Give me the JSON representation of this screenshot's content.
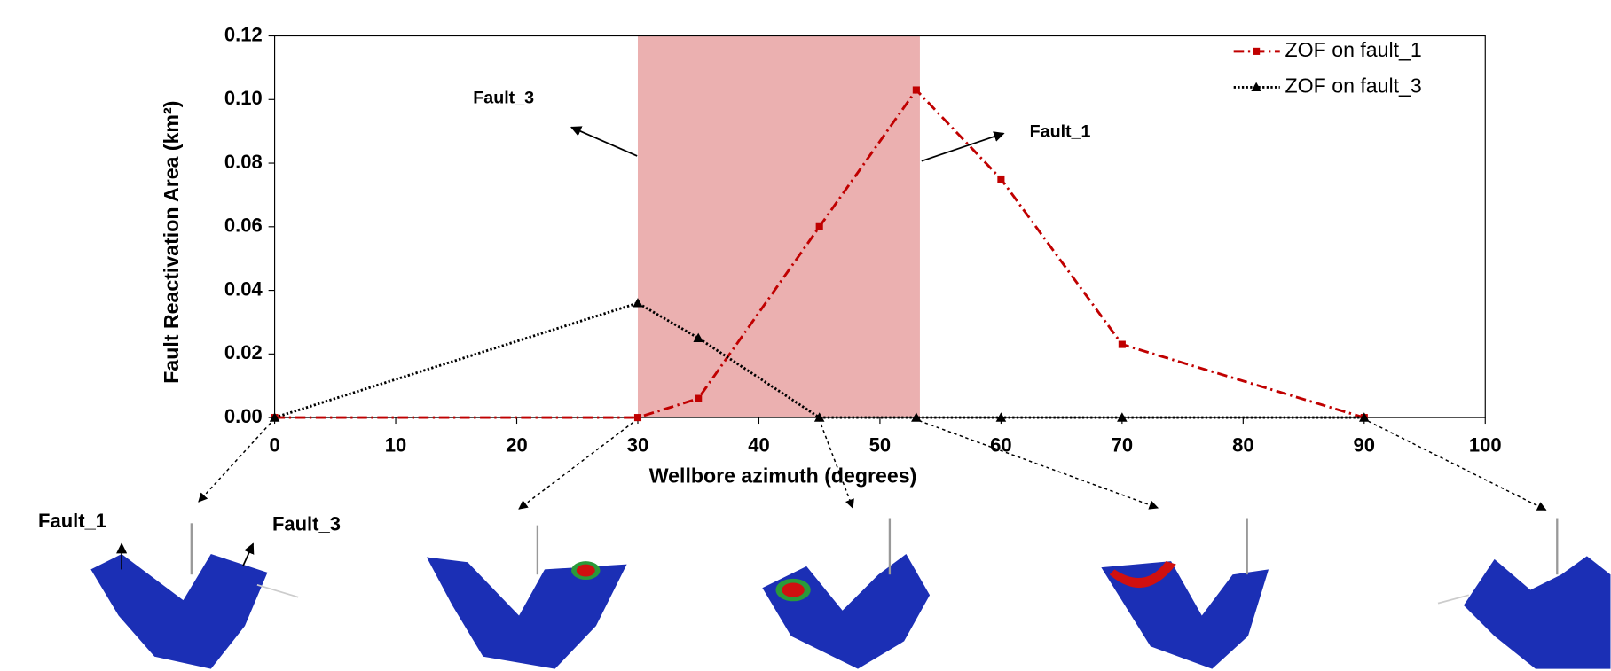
{
  "chart_data": {
    "type": "line",
    "x_label": "Wellbore azimuth (degrees)",
    "y_label": "Fault Reactivation Area (km²)",
    "x": [
      0,
      30,
      35,
      45,
      53,
      60,
      70,
      90
    ],
    "series": [
      {
        "name": "ZOF on fault_1",
        "color": "#c00000",
        "marker": "square",
        "line_style": "dashdot",
        "values": [
          0,
          0,
          0.006,
          0.06,
          0.103,
          0.075,
          0.023,
          0
        ]
      },
      {
        "name": "ZOF on fault_3",
        "color": "#000000",
        "marker": "triangle",
        "line_style": "dotted",
        "values": [
          0,
          0.036,
          0.025,
          0,
          0,
          0,
          0,
          0
        ]
      }
    ],
    "xlim": [
      0,
      100
    ],
    "xticks": [
      0,
      10,
      20,
      30,
      40,
      50,
      60,
      70,
      80,
      90,
      100
    ],
    "ylim": [
      0,
      0.12
    ],
    "yticks": [
      {
        "value": 0,
        "label": "0.00"
      },
      {
        "value": 0.02,
        "label": "0.02"
      },
      {
        "value": 0.04,
        "label": "0.04"
      },
      {
        "value": 0.06,
        "label": "0.06"
      },
      {
        "value": 0.08,
        "label": "0.08"
      },
      {
        "value": 0.1,
        "label": "0.10"
      },
      {
        "value": 0.12,
        "label": "0.12"
      }
    ],
    "highlight_range": [
      30,
      53.3
    ],
    "highlight_color": "#ebb0b0",
    "legend": "upper right",
    "annotations": [
      "Fault_3",
      "Fault_1"
    ]
  },
  "figures": {
    "labels": [
      "Fault_1",
      "Fault_3"
    ]
  }
}
